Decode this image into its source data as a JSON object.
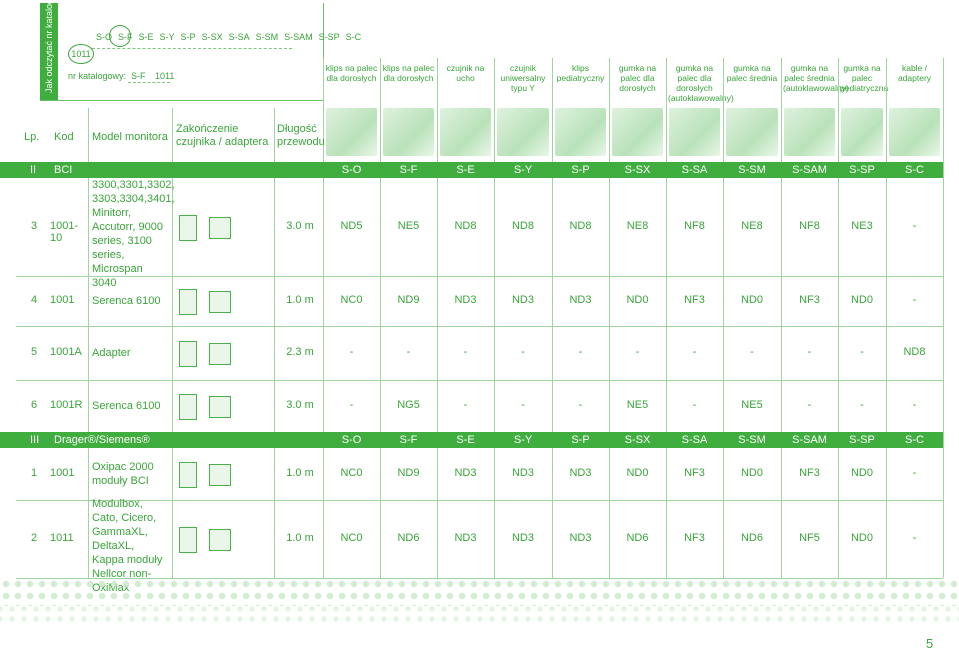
{
  "legend": {
    "tab_text": "Jak odczytać nr katalogowy",
    "codes": [
      "S-O",
      "S-F",
      "S-E",
      "S-Y",
      "S-P",
      "S-SX",
      "S-SA",
      "S-SM",
      "S-SAM",
      "S-SP",
      "S-C"
    ],
    "oval": "1011",
    "nr_label": "nr katalogowy:",
    "nr_code1": "S-F",
    "nr_code2": "1011"
  },
  "columns": [
    "klips na palec dla dorosłych",
    "klips na palec dla dorosłych",
    "czujnik na ucho",
    "czujnik uniwersalny typu Y",
    "klips pediatryczny",
    "gumka na palec dla dorosłych",
    "gumka na palec dla dorosłych (autoklawowalny)",
    "gumka na palec średnia",
    "gumka na palec średnia (autoklawowalny)",
    "gumka na palec pediatryczna",
    "kable / adaptery"
  ],
  "header": {
    "lp": "Lp.",
    "kod": "Kod",
    "model": "Model monitora",
    "zakonczenie": "Zakończenie czujnika / adaptera",
    "dlugosc": "Długość przewodu"
  },
  "sections": [
    {
      "roman": "II",
      "name": "BCI",
      "codes": [
        "S-O",
        "S-F",
        "S-E",
        "S-Y",
        "S-P",
        "S-SX",
        "S-SA",
        "S-SM",
        "S-SAM",
        "S-SP",
        "S-C"
      ],
      "rows": [
        {
          "lp": "3",
          "kod": "1001-10",
          "model": "3300,3301,3302, 3303,3304,3401, Minitorr, Accutorr, 9000 series, 3100 series, Microspan 3040",
          "len": "3.0 m",
          "vals": [
            "ND5",
            "NE5",
            "ND8",
            "ND8",
            "ND8",
            "NE8",
            "NF8",
            "NE8",
            "NF8",
            "NE3",
            "-"
          ]
        },
        {
          "lp": "4",
          "kod": "1001",
          "model": "Serenca 6100",
          "len": "1.0 m",
          "vals": [
            "NC0",
            "ND9",
            "ND3",
            "ND3",
            "ND3",
            "ND0",
            "NF3",
            "ND0",
            "NF3",
            "ND0",
            "-"
          ]
        },
        {
          "lp": "5",
          "kod": "1001A",
          "model": "Adapter",
          "len": "2.3 m",
          "vals": [
            "-",
            "-",
            "-",
            "-",
            "-",
            "-",
            "-",
            "-",
            "-",
            "-",
            "ND8"
          ]
        },
        {
          "lp": "6",
          "kod": "1001R",
          "model": "Serenca 6100",
          "len": "3.0 m",
          "vals": [
            "-",
            "NG5",
            "-",
            "-",
            "-",
            "NE5",
            "-",
            "NE5",
            "-",
            "-",
            "-"
          ]
        }
      ]
    },
    {
      "roman": "III",
      "name": "Drager®/Siemens®",
      "codes": [
        "S-O",
        "S-F",
        "S-E",
        "S-Y",
        "S-P",
        "S-SX",
        "S-SA",
        "S-SM",
        "S-SAM",
        "S-SP",
        "S-C"
      ],
      "rows": [
        {
          "lp": "1",
          "kod": "1001",
          "model": "Oxipac 2000 moduły BCI",
          "len": "1.0 m",
          "vals": [
            "NC0",
            "ND9",
            "ND3",
            "ND3",
            "ND3",
            "ND0",
            "NF3",
            "ND0",
            "NF3",
            "ND0",
            "-"
          ]
        },
        {
          "lp": "2",
          "kod": "1011",
          "model": "Modulbox, Cato, Cicero, GammaXL, DeltaXL, Kappa moduły Nellcor non-OxiMax",
          "len": "1.0 m",
          "vals": [
            "NC0",
            "ND6",
            "ND3",
            "ND3",
            "ND3",
            "ND6",
            "NF3",
            "ND6",
            "NF5",
            "ND0",
            "-"
          ]
        }
      ]
    }
  ],
  "page_number": "5"
}
